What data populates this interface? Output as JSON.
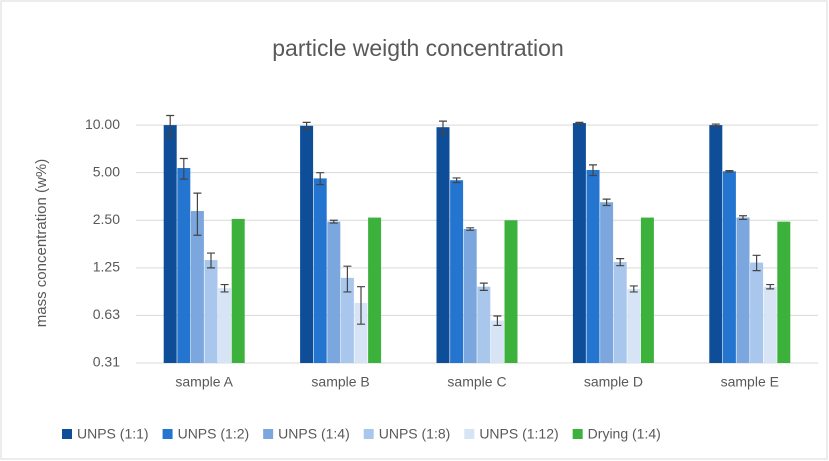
{
  "chart_data": {
    "type": "bar",
    "title": "particle weigth concentration",
    "ylabel": "mass concentration (w%)",
    "categories": [
      "sample A",
      "sample B",
      "sample C",
      "sample D",
      "sample E"
    ],
    "yscale": "log",
    "ylim": [
      0.3125,
      14
    ],
    "yticks": [
      {
        "value": 0.3125,
        "label": "0.31"
      },
      {
        "value": 0.625,
        "label": "0.63"
      },
      {
        "value": 1.25,
        "label": "1.25"
      },
      {
        "value": 2.5,
        "label": "2.50"
      },
      {
        "value": 5,
        "label": "5.00"
      },
      {
        "value": 10,
        "label": "10.00"
      }
    ],
    "grid": true,
    "legend": "bottom",
    "series": [
      {
        "name": "UNPS (1:1)",
        "color": "#0e4e99",
        "values": [
          10,
          9.9,
          9.7,
          10.3,
          10
        ],
        "errors": [
          1.5,
          0.5,
          0.9,
          0.1,
          0.15
        ]
      },
      {
        "name": "UNPS (1:2)",
        "color": "#2475cf",
        "values": [
          5.35,
          4.6,
          4.48,
          5.2,
          5.1
        ],
        "errors": [
          0.8,
          0.4,
          0.15,
          0.4,
          0.05
        ]
      },
      {
        "name": "UNPS (1:4)",
        "color": "#7ba7de",
        "values": [
          2.86,
          2.45,
          2.2,
          3.25,
          2.6
        ],
        "errors": [
          0.85,
          0.05,
          0.04,
          0.15,
          0.07
        ]
      },
      {
        "name": "UNPS (1:8)",
        "color": "#a9c7ec",
        "values": [
          1.4,
          1.08,
          0.95,
          1.36,
          1.35
        ],
        "errors": [
          0.15,
          0.2,
          0.05,
          0.07,
          0.15
        ]
      },
      {
        "name": "UNPS (1:12)",
        "color": "#d6e4f6",
        "values": [
          0.93,
          0.75,
          0.58,
          0.92,
          0.95
        ],
        "errors": [
          0.05,
          0.2,
          0.04,
          0.04,
          0.03
        ]
      },
      {
        "name": "Drying (1:4)",
        "color": "#3cb23c",
        "values": [
          2.55,
          2.6,
          2.5,
          2.6,
          2.45
        ]
      }
    ]
  }
}
